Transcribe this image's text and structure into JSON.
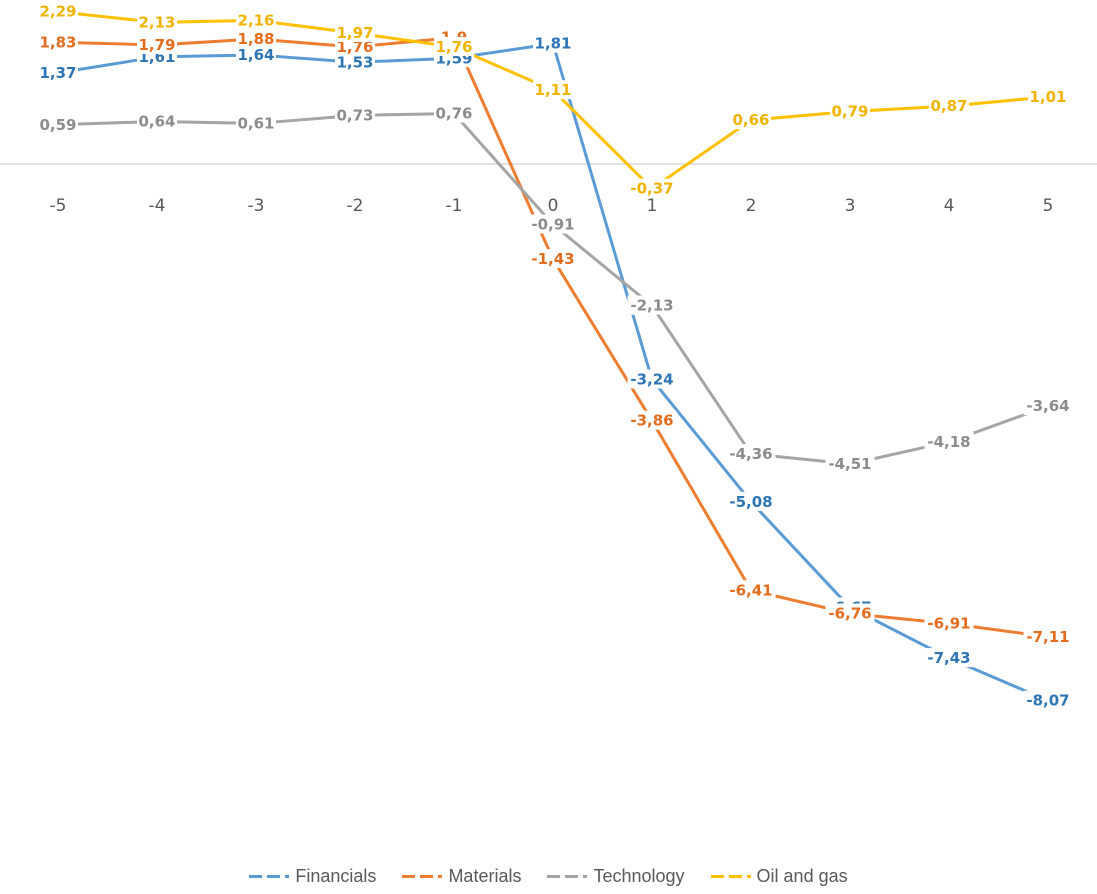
{
  "chart_data": {
    "type": "line",
    "x": [
      "-5",
      "-4",
      "-3",
      "-2",
      "-1",
      "0",
      "1",
      "2",
      "3",
      "4",
      "5"
    ],
    "series": [
      {
        "name": "Financials",
        "color": "#5B9BD5",
        "labelColor": "#2E75B6",
        "values": [
          1.37,
          1.61,
          1.64,
          1.53,
          1.59,
          1.81,
          -3.24,
          -5.08,
          -6.67,
          -7.43,
          -8.07
        ],
        "labels": [
          "1,37",
          "1,61",
          "1,64",
          "1,53",
          "1,59",
          "1,81",
          "-3,24",
          "-5,08",
          "-6,67",
          "-7,43",
          "-8,07"
        ]
      },
      {
        "name": "Materials",
        "color": "#ED7D31",
        "labelColor": "#E36C1D",
        "values": [
          1.83,
          1.79,
          1.88,
          1.76,
          1.9,
          -1.43,
          -3.86,
          -6.41,
          -6.76,
          -6.91,
          -7.11
        ],
        "labels": [
          "1,83",
          "1,79",
          "1,88",
          "1,76",
          "1,9",
          "-1,43",
          "-3,86",
          "-6,41",
          "-6,76",
          "-6,91",
          "-7,11"
        ]
      },
      {
        "name": "Technology",
        "color": "#A5A5A5",
        "labelColor": "#8C8C8C",
        "values": [
          0.59,
          0.64,
          0.61,
          0.73,
          0.76,
          -0.91,
          -2.13,
          -4.36,
          -4.51,
          -4.18,
          -3.64
        ],
        "labels": [
          "0,59",
          "0,64",
          "0,61",
          "0,73",
          "0,76",
          "-0,91",
          "-2,13",
          "-4,36",
          "-4,51",
          "-4,18",
          "-3,64"
        ]
      },
      {
        "name": "Oil and gas",
        "color": "#FFC000",
        "labelColor": "#F0B400",
        "values": [
          2.29,
          2.13,
          2.16,
          1.97,
          1.76,
          1.11,
          -0.37,
          0.66,
          0.79,
          0.87,
          1.01
        ],
        "labels": [
          "2,29",
          "2,13",
          "2,16",
          "1,97",
          "1,76",
          "1,11",
          "-0,37",
          "0,66",
          "0,79",
          "0,87",
          "1,01"
        ]
      }
    ],
    "ylim": [
      -9.5,
      2.5
    ],
    "grid": false,
    "legend": "bottom"
  }
}
